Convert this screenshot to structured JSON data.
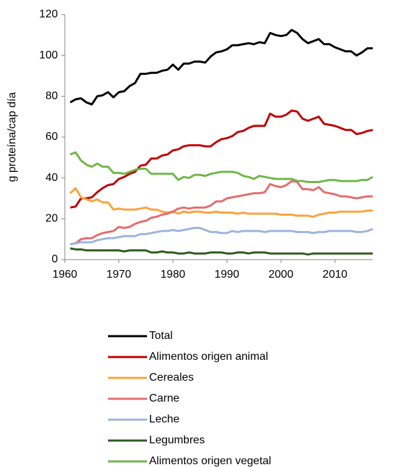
{
  "chart_data": {
    "type": "line",
    "ylabel": "g proteína/cap día",
    "x": [
      1961,
      1962,
      1963,
      1964,
      1965,
      1966,
      1967,
      1968,
      1969,
      1970,
      1971,
      1972,
      1973,
      1974,
      1975,
      1976,
      1977,
      1978,
      1979,
      1980,
      1981,
      1982,
      1983,
      1984,
      1985,
      1986,
      1987,
      1988,
      1989,
      1990,
      1991,
      1992,
      1993,
      1994,
      1995,
      1996,
      1997,
      1998,
      1999,
      2000,
      2001,
      2002,
      2003,
      2004,
      2005,
      2006,
      2007,
      2008,
      2009,
      2010,
      2011,
      2012,
      2013,
      2014,
      2015,
      2016,
      2017
    ],
    "xlim": [
      1960,
      2017
    ],
    "xticks": [
      1960,
      1970,
      1980,
      1990,
      2000,
      2010
    ],
    "ylim": [
      0,
      120
    ],
    "yticks": [
      0,
      20,
      40,
      60,
      80,
      100,
      120
    ],
    "grid": false,
    "legend": "bottom",
    "series": [
      {
        "name": "Total",
        "color": "#000000",
        "values": [
          77,
          78.5,
          79,
          77,
          76,
          80,
          80.5,
          82,
          79.5,
          82,
          82.5,
          85,
          86.5,
          91,
          91,
          91.5,
          91.5,
          92.5,
          93,
          95.5,
          93,
          96,
          96,
          97,
          97,
          96.5,
          99.5,
          101.5,
          102,
          103,
          105,
          105,
          105.5,
          106,
          105.5,
          106.5,
          106,
          111,
          110,
          109.5,
          110,
          112.5,
          111,
          108,
          106,
          107,
          108,
          105.5,
          105.5,
          104,
          103,
          102,
          102,
          100,
          101.5,
          103.5,
          103.5
        ]
      },
      {
        "name": "Alimentos origen animal",
        "color": "#c00000",
        "values": [
          25.5,
          26,
          30,
          30,
          30.5,
          33,
          35,
          36.5,
          37,
          39.5,
          40.5,
          42,
          43,
          46,
          46.5,
          49.5,
          49.5,
          51,
          51.5,
          53.5,
          54,
          55.5,
          56,
          56,
          56,
          55.5,
          55.5,
          57.5,
          59,
          59.5,
          60.5,
          62.5,
          63,
          64.5,
          65.5,
          65.5,
          65.5,
          71.5,
          70,
          70,
          71,
          73,
          72.5,
          69,
          68,
          69,
          70,
          66.5,
          66,
          65.5,
          64.5,
          63.5,
          63.5,
          61.5,
          62,
          63,
          63.5
        ]
      },
      {
        "name": "Cereales",
        "color": "#f9a33c",
        "values": [
          32.5,
          35,
          30.5,
          29.5,
          28.5,
          29.5,
          28,
          28,
          24.5,
          25,
          24.5,
          24.5,
          24.5,
          25,
          25.5,
          24.5,
          24.5,
          23.5,
          23,
          23.5,
          22.5,
          23.5,
          23,
          23.5,
          23.5,
          23,
          23,
          23.5,
          23,
          23,
          23,
          22.5,
          23,
          22.5,
          22.5,
          22.5,
          22.5,
          22.5,
          22.5,
          22,
          22,
          22,
          21.5,
          21.5,
          21.5,
          21,
          22,
          22.5,
          23,
          23,
          23.5,
          23.5,
          23.5,
          23.5,
          23.5,
          24,
          24
        ]
      },
      {
        "name": "Carne",
        "color": "#e46c6c",
        "values": [
          7.5,
          8,
          10,
          10.5,
          10.5,
          12,
          13,
          13.5,
          14,
          16,
          15.5,
          16,
          17.5,
          18.5,
          19,
          20.5,
          21,
          22,
          22.5,
          23.5,
          25,
          25.5,
          25,
          25.5,
          25.5,
          25.5,
          26.5,
          28.5,
          28.5,
          30,
          30.5,
          31,
          31.5,
          32,
          32.5,
          32.5,
          33,
          37,
          36,
          35.5,
          36.5,
          38.5,
          38,
          34.5,
          34.5,
          34,
          35.5,
          33,
          32.5,
          32,
          31,
          31,
          30.5,
          30,
          30.5,
          31,
          31
        ]
      },
      {
        "name": "Leche",
        "color": "#9bb5db",
        "values": [
          7.5,
          8,
          8.5,
          8.5,
          8.5,
          9.5,
          10,
          10.5,
          10.5,
          11,
          11.5,
          11.5,
          11.5,
          12.5,
          12.5,
          13,
          13.5,
          14,
          14,
          14.5,
          14,
          14.5,
          15,
          15.5,
          15.5,
          14.5,
          13.5,
          13.5,
          13,
          13,
          14,
          13.5,
          14,
          14,
          14,
          14,
          13.5,
          14,
          14,
          14,
          14,
          14,
          13.5,
          13.5,
          13.5,
          13,
          13.5,
          13.5,
          14,
          14,
          14,
          14,
          14,
          13.5,
          13.5,
          14,
          15
        ]
      },
      {
        "name": "Legumbres",
        "color": "#2e5a1c",
        "values": [
          5.5,
          5,
          5,
          4.5,
          4.5,
          4.5,
          4.5,
          4.5,
          4.5,
          4.5,
          4,
          4.5,
          4.5,
          4.5,
          4.5,
          3.5,
          3.5,
          4,
          3.5,
          3.5,
          3,
          3,
          3.5,
          3,
          3,
          3,
          3.5,
          3.5,
          3.5,
          3,
          3,
          3.5,
          3.5,
          3,
          3.5,
          3.5,
          3.5,
          3,
          3,
          3,
          3,
          3,
          3,
          3,
          2.5,
          3,
          3,
          3,
          3,
          3,
          3,
          3,
          3,
          3,
          3,
          3,
          3
        ]
      },
      {
        "name": "Alimentos origen vegetal",
        "color": "#70b648",
        "values": [
          51.5,
          52.5,
          48.5,
          46.5,
          45.5,
          47,
          45.5,
          45.5,
          42.5,
          42.5,
          42,
          43,
          44,
          44.5,
          44.5,
          42,
          42,
          42,
          42,
          42,
          39,
          40.5,
          40,
          41.5,
          41.5,
          41,
          42,
          42.5,
          43,
          43,
          43,
          42.5,
          41,
          40.5,
          39.5,
          41,
          40.5,
          40,
          39.5,
          39.5,
          39.5,
          39.5,
          38.5,
          38.5,
          38,
          38,
          38,
          38.5,
          39,
          39,
          38.5,
          38.5,
          38.5,
          38.5,
          39,
          39,
          40.5
        ]
      }
    ]
  }
}
